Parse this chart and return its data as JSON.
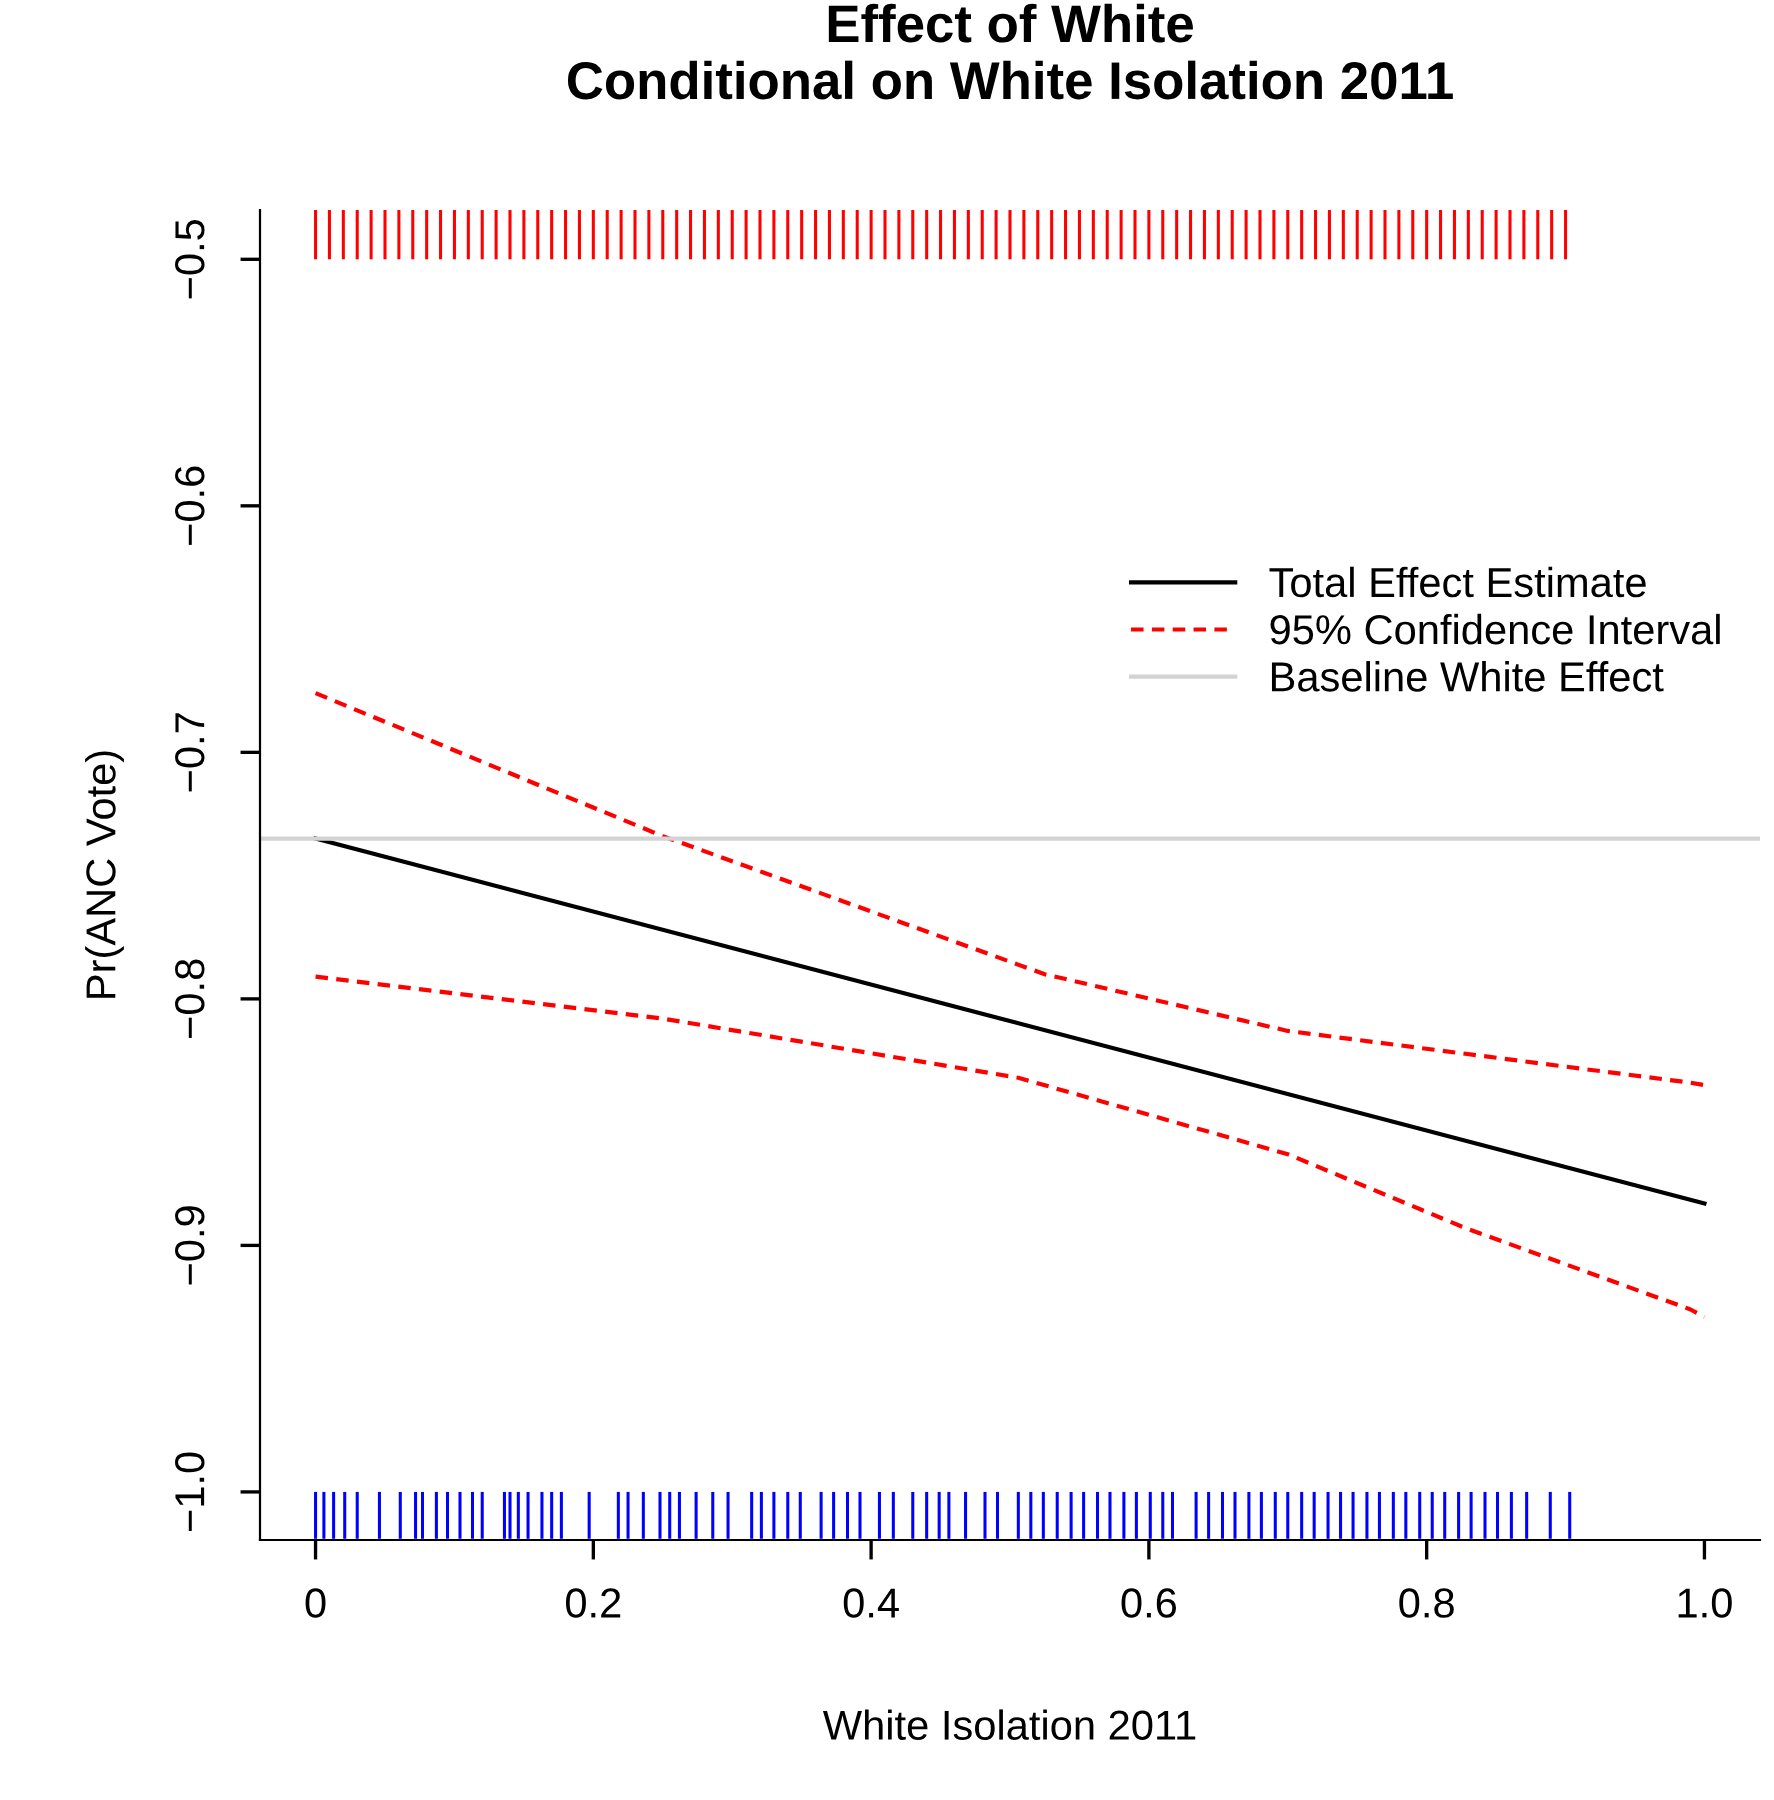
{
  "chart_data": {
    "type": "line",
    "title": "Effect of White\nConditional on White Isolation 2011",
    "xlabel": "White Isolation 2011",
    "ylabel": "Pr(ANC Vote)",
    "xlim": [
      -0.04,
      1.04
    ],
    "ylim": [
      -1.0195,
      -0.48
    ],
    "xticks": [
      0,
      {
        "value": 0.2,
        "label": "0.2"
      },
      {
        "value": 0.4,
        "label": "0.4"
      },
      {
        "value": 0.6,
        "label": "0.6"
      },
      {
        "value": 0.8,
        "label": "0.8"
      },
      {
        "value": 1,
        "label": "1.0"
      }
    ],
    "yticks": [
      {
        "value": -1.0,
        "label": "−1.0"
      },
      {
        "value": -0.9,
        "label": "−0.9"
      },
      {
        "value": -0.8,
        "label": "−0.8"
      },
      {
        "value": -0.7,
        "label": "−0.7"
      },
      {
        "value": -0.6,
        "label": "−0.6"
      },
      {
        "value": -0.5,
        "label": "−0.5"
      }
    ],
    "grid": false,
    "legend": "top right",
    "series": [
      {
        "name": "Total Effect Estimate",
        "color": "#000000",
        "line_style": "solid",
        "x": [
          0,
          1
        ],
        "values": [
          -0.735,
          -0.883
        ]
      },
      {
        "name": "95% Confidence Interval",
        "color": "#ff0000",
        "line_style": "dashed",
        "x": [
          0,
          0.25,
          0.525,
          0.7,
          0.99,
          1
        ],
        "values": [
          -0.676,
          -0.734,
          -0.79,
          -0.813,
          -0.834,
          -0.835
        ]
      },
      {
        "color": "#ff0000",
        "line_style": "dashed",
        "x": [
          0,
          0.25,
          0.506,
          0.7,
          0.828,
          0.99,
          1
        ],
        "values": [
          -0.791,
          -0.808,
          -0.832,
          -0.863,
          -0.893,
          -0.926,
          -0.929
        ]
      },
      {
        "type": "bar",
        "color": "#ff0000",
        "x": [
          0.0,
          0.01,
          0.02,
          0.03,
          0.04,
          0.05,
          0.06,
          0.07,
          0.08,
          0.09,
          0.1,
          0.11,
          0.12,
          0.13,
          0.14,
          0.15,
          0.16,
          0.17,
          0.18,
          0.19,
          0.2,
          0.21,
          0.22,
          0.23,
          0.24,
          0.25,
          0.26,
          0.27,
          0.28,
          0.29,
          0.3,
          0.31,
          0.32,
          0.33,
          0.34,
          0.35,
          0.36,
          0.37,
          0.38,
          0.39,
          0.4,
          0.41,
          0.42,
          0.43,
          0.44,
          0.45,
          0.46,
          0.47,
          0.48,
          0.49,
          0.5,
          0.51,
          0.52,
          0.53,
          0.54,
          0.55,
          0.56,
          0.57,
          0.58,
          0.59,
          0.6,
          0.61,
          0.62,
          0.63,
          0.64,
          0.65,
          0.66,
          0.67,
          0.68,
          0.69,
          0.7,
          0.71,
          0.72,
          0.73,
          0.74,
          0.75,
          0.76,
          0.77,
          0.78,
          0.79,
          0.8,
          0.81,
          0.82,
          0.83,
          0.84,
          0.85,
          0.86,
          0.87,
          0.88,
          0.89,
          0.9
        ],
        "base": [
          -0.5,
          -0.5,
          -0.5,
          -0.5,
          -0.5,
          -0.5,
          -0.5,
          -0.5,
          -0.5,
          -0.5,
          -0.5,
          -0.5,
          -0.5,
          -0.5,
          -0.5,
          -0.5,
          -0.5,
          -0.5,
          -0.5,
          -0.5,
          -0.5,
          -0.5,
          -0.5,
          -0.5,
          -0.5,
          -0.5,
          -0.5,
          -0.5,
          -0.5,
          -0.5,
          -0.5,
          -0.5,
          -0.5,
          -0.5,
          -0.5,
          -0.5,
          -0.5,
          -0.5,
          -0.5,
          -0.5,
          -0.5,
          -0.5,
          -0.5,
          -0.5,
          -0.5,
          -0.5,
          -0.5,
          -0.5,
          -0.5,
          -0.5,
          -0.5,
          -0.5,
          -0.5,
          -0.5,
          -0.5,
          -0.5,
          -0.5,
          -0.5,
          -0.5,
          -0.5,
          -0.5,
          -0.5,
          -0.5,
          -0.5,
          -0.5,
          -0.5,
          -0.5,
          -0.5,
          -0.5,
          -0.5,
          -0.5,
          -0.5,
          -0.5,
          -0.5,
          -0.5,
          -0.5,
          -0.5,
          -0.5,
          -0.5,
          -0.5,
          -0.5,
          -0.5,
          -0.5,
          -0.5,
          -0.5,
          -0.5,
          -0.5,
          -0.5,
          -0.5,
          -0.5,
          -0.5
        ],
        "values": [
          0.02,
          0.02,
          0.02,
          0.02,
          0.02,
          0.02,
          0.02,
          0.02,
          0.02,
          0.02,
          0.02,
          0.02,
          0.02,
          0.02,
          0.02,
          0.02,
          0.02,
          0.02,
          0.02,
          0.02,
          0.02,
          0.02,
          0.02,
          0.02,
          0.02,
          0.02,
          0.02,
          0.02,
          0.02,
          0.02,
          0.02,
          0.02,
          0.02,
          0.02,
          0.02,
          0.02,
          0.02,
          0.02,
          0.02,
          0.02,
          0.02,
          0.02,
          0.02,
          0.02,
          0.02,
          0.02,
          0.02,
          0.02,
          0.02,
          0.02,
          0.02,
          0.02,
          0.02,
          0.02,
          0.02,
          0.02,
          0.02,
          0.02,
          0.02,
          0.02,
          0.02,
          0.02,
          0.02,
          0.02,
          0.02,
          0.02,
          0.02,
          0.02,
          0.02,
          0.02,
          0.02,
          0.02,
          0.02,
          0.02,
          0.02,
          0.02,
          0.02,
          0.02,
          0.02,
          0.02,
          0.02,
          0.02,
          0.02,
          0.02,
          0.02,
          0.02,
          0.02,
          0.02,
          0.02,
          0.02,
          0.02
        ]
      },
      {
        "type": "bar",
        "color": "#0000ff",
        "x": [
          0.0,
          0.006,
          0.013,
          0.021,
          0.03,
          0.046,
          0.061,
          0.072,
          0.077,
          0.087,
          0.095,
          0.104,
          0.113,
          0.12,
          0.136,
          0.14,
          0.146,
          0.153,
          0.163,
          0.17,
          0.177,
          0.197,
          0.218,
          0.225,
          0.236,
          0.248,
          0.255,
          0.262,
          0.274,
          0.286,
          0.297,
          0.314,
          0.321,
          0.33,
          0.34,
          0.349,
          0.364,
          0.373,
          0.383,
          0.392,
          0.406,
          0.416,
          0.43,
          0.44,
          0.449,
          0.456,
          0.468,
          0.482,
          0.491,
          0.506,
          0.515,
          0.524,
          0.534,
          0.544,
          0.553,
          0.563,
          0.572,
          0.582,
          0.591,
          0.601,
          0.61,
          0.617,
          0.634,
          0.643,
          0.653,
          0.662,
          0.672,
          0.681,
          0.691,
          0.7,
          0.71,
          0.719,
          0.729,
          0.738,
          0.747,
          0.757,
          0.766,
          0.776,
          0.785,
          0.795,
          0.804,
          0.813,
          0.823,
          0.832,
          0.842,
          0.851,
          0.861,
          0.872,
          0.889,
          0.903
        ],
        "base": [
          -1.019,
          -1.019,
          -1.019,
          -1.019,
          -1.019,
          -1.019,
          -1.019,
          -1.019,
          -1.019,
          -1.019,
          -1.019,
          -1.019,
          -1.019,
          -1.019,
          -1.019,
          -1.019,
          -1.019,
          -1.019,
          -1.019,
          -1.019,
          -1.019,
          -1.019,
          -1.019,
          -1.019,
          -1.019,
          -1.019,
          -1.019,
          -1.019,
          -1.019,
          -1.019,
          -1.019,
          -1.019,
          -1.019,
          -1.019,
          -1.019,
          -1.019,
          -1.019,
          -1.019,
          -1.019,
          -1.019,
          -1.019,
          -1.019,
          -1.019,
          -1.019,
          -1.019,
          -1.019,
          -1.019,
          -1.019,
          -1.019,
          -1.019,
          -1.019,
          -1.019,
          -1.019,
          -1.019,
          -1.019,
          -1.019,
          -1.019,
          -1.019,
          -1.019,
          -1.019,
          -1.019,
          -1.019,
          -1.019,
          -1.019,
          -1.019,
          -1.019,
          -1.019,
          -1.019,
          -1.019,
          -1.019,
          -1.019,
          -1.019,
          -1.019,
          -1.019,
          -1.019,
          -1.019,
          -1.019,
          -1.019,
          -1.019,
          -1.019,
          -1.019,
          -1.019,
          -1.019,
          -1.019,
          -1.019,
          -1.019,
          -1.019,
          -1.019,
          -1.019,
          -1.019
        ],
        "values": [
          0.019,
          0.019,
          0.019,
          0.019,
          0.019,
          0.019,
          0.019,
          0.019,
          0.019,
          0.019,
          0.019,
          0.019,
          0.019,
          0.019,
          0.019,
          0.019,
          0.019,
          0.019,
          0.019,
          0.019,
          0.019,
          0.019,
          0.019,
          0.019,
          0.019,
          0.019,
          0.019,
          0.019,
          0.019,
          0.019,
          0.019,
          0.019,
          0.019,
          0.019,
          0.019,
          0.019,
          0.019,
          0.019,
          0.019,
          0.019,
          0.019,
          0.019,
          0.019,
          0.019,
          0.019,
          0.019,
          0.019,
          0.019,
          0.019,
          0.019,
          0.019,
          0.019,
          0.019,
          0.019,
          0.019,
          0.019,
          0.019,
          0.019,
          0.019,
          0.019,
          0.019,
          0.019,
          0.019,
          0.019,
          0.019,
          0.019,
          0.019,
          0.019,
          0.019,
          0.019,
          0.019,
          0.019,
          0.019,
          0.019,
          0.019,
          0.019,
          0.019,
          0.019,
          0.019,
          0.019,
          0.019,
          0.019,
          0.019,
          0.019,
          0.019,
          0.019,
          0.019,
          0.019,
          0.019,
          0.019
        ]
      }
    ],
    "ref_lines": [
      {
        "axis": "y",
        "value": -0.735,
        "label": "Baseline White Effect",
        "color": "#d3d3d3",
        "line_style": "solid"
      }
    ]
  }
}
